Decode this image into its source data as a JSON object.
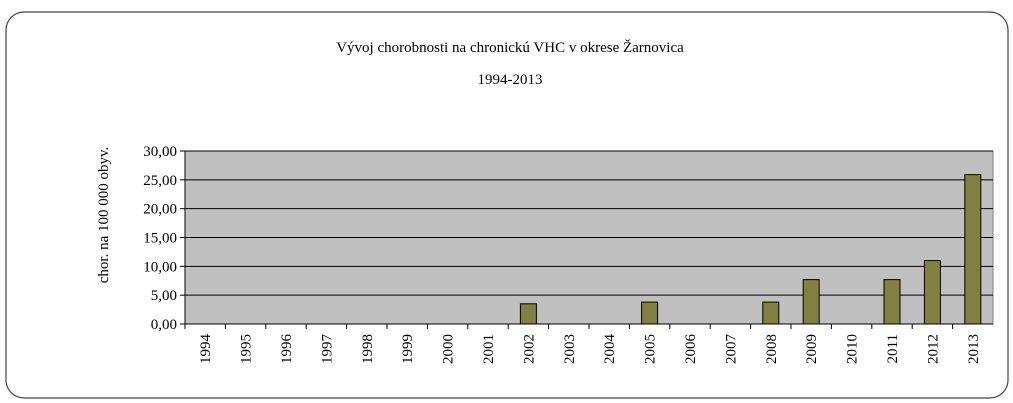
{
  "chart_data": {
    "type": "bar",
    "title": "Vývoj chorobnosti na chronickú VHC v okrese Žarnovica",
    "subtitle": "1994-2013",
    "y_label": "chor. na 100 000 obyv.",
    "categories": [
      "1994",
      "1995",
      "1996",
      "1997",
      "1998",
      "1999",
      "2000",
      "2001",
      "2002",
      "2003",
      "2004",
      "2005",
      "2006",
      "2007",
      "2008",
      "2009",
      "2010",
      "2011",
      "2012",
      "2013"
    ],
    "values": [
      0,
      0,
      0,
      0,
      0,
      0,
      0,
      0,
      3.5,
      0,
      0,
      3.8,
      0,
      0,
      3.8,
      7.7,
      0,
      7.7,
      11.0,
      25.9
    ],
    "color": "#808040",
    "ylim": [
      0,
      30
    ],
    "yticks": [
      {
        "value": 0,
        "label": "0,00"
      },
      {
        "value": 5,
        "label": "5,00"
      },
      {
        "value": 10,
        "label": "10,00"
      },
      {
        "value": 15,
        "label": "15,00"
      },
      {
        "value": 20,
        "label": "20,00"
      },
      {
        "value": 25,
        "label": "25,00"
      },
      {
        "value": 30,
        "label": "30,00"
      }
    ],
    "grid": true
  }
}
